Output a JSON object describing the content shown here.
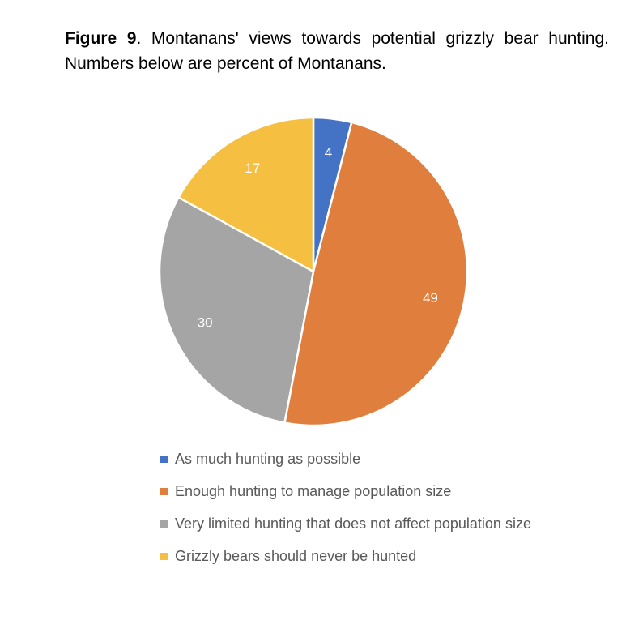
{
  "caption": {
    "figure_label": "Figure 9",
    "text": ".  Montanans' views towards potential grizzly bear hunting.  Numbers below are percent of Montanans."
  },
  "chart_data": {
    "type": "pie",
    "title": "",
    "unit": "percent",
    "start_angle_deg": 0,
    "direction": "clockwise",
    "slices": [
      {
        "label": "As much hunting as possible",
        "value": 4,
        "color": "#4472C4"
      },
      {
        "label": "Enough hunting to manage population size",
        "value": 49,
        "color": "#E07E3E"
      },
      {
        "label": "Very limited hunting that does not affect population size",
        "value": 30,
        "color": "#A5A5A5"
      },
      {
        "label": "Grizzly bears should never be hunted",
        "value": 17,
        "color": "#F5BF42"
      }
    ],
    "legend_position": "bottom",
    "data_label_color": "#ffffff"
  }
}
